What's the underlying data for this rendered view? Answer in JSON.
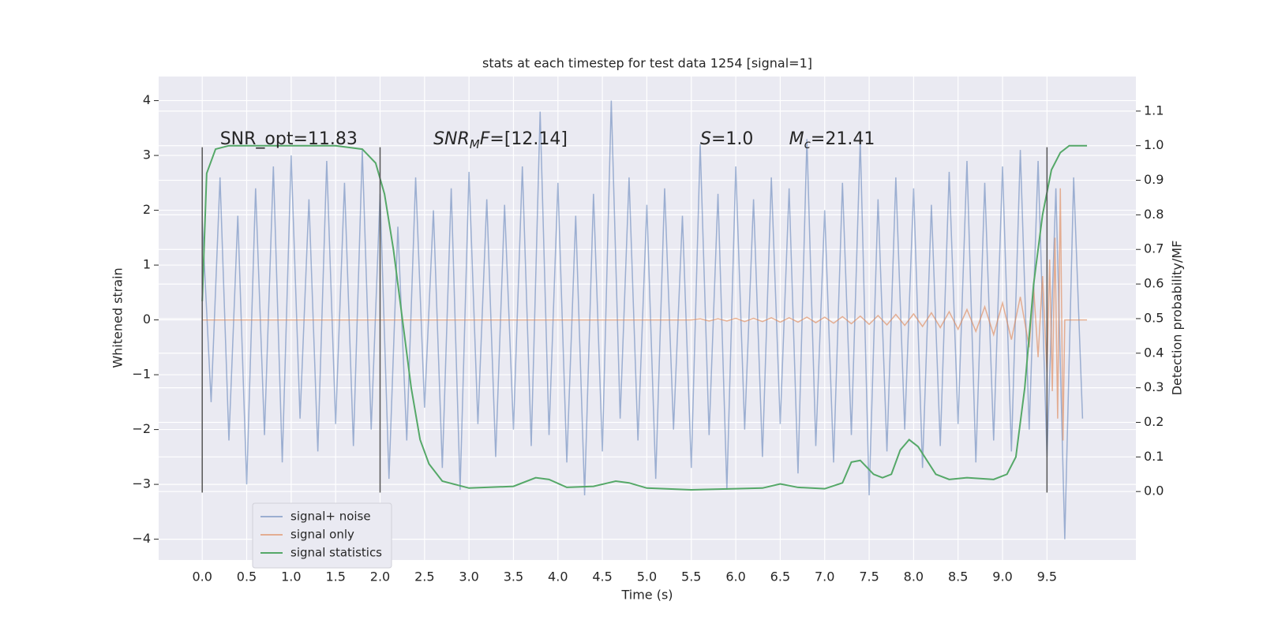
{
  "chart_data": {
    "type": "line",
    "title": "stats at each timestep for test data 1254 [signal=1]",
    "xlabel": "Time (s)",
    "ylabel": "Whitened strain",
    "y2label": "Detection probability/MF",
    "xlim": [
      -0.49,
      10.5
    ],
    "ylim": [
      -4.38,
      4.44
    ],
    "y2lim": [
      -0.198,
      1.2
    ],
    "xticks": [
      {
        "value": 0,
        "label": "0.0"
      },
      0.5,
      {
        "value": 1,
        "label": "1.0"
      },
      1.5,
      {
        "value": 2,
        "label": "2.0"
      },
      2.5,
      {
        "value": 3,
        "label": "3.0"
      },
      3.5,
      {
        "value": 4,
        "label": "4.0"
      },
      4.5,
      {
        "value": 5,
        "label": "5.0"
      },
      5.5,
      {
        "value": 6,
        "label": "6.0"
      },
      6.5,
      {
        "value": 7,
        "label": "7.0"
      },
      7.5,
      {
        "value": 8,
        "label": "8.0"
      },
      8.5,
      {
        "value": 9,
        "label": "9.0"
      },
      9.5
    ],
    "yticks": [
      {
        "value": -4,
        "label": "−4"
      },
      {
        "value": -3,
        "label": "−3"
      },
      {
        "value": -2,
        "label": "−2"
      },
      {
        "value": -1,
        "label": "−1"
      },
      0,
      1,
      2,
      3,
      4
    ],
    "y2ticks": [
      {
        "value": 0,
        "label": "0.0"
      },
      0.1,
      0.2,
      0.3,
      0.4,
      0.5,
      0.6,
      0.7,
      0.8,
      0.9,
      {
        "value": 1,
        "label": "1.0"
      },
      1.1
    ],
    "grid": true,
    "legend": "lower left",
    "vlines": {
      "x": [
        0,
        2,
        9.5
      ],
      "ymin": -3.15,
      "ymax": 3.15,
      "color": "#555555"
    },
    "annotations": [
      {
        "x": 0.2,
        "y": 3.29,
        "parts": [
          {
            "text": "SNR_opt=11.83"
          }
        ]
      },
      {
        "x": 2.6,
        "y": 3.29,
        "parts": [
          {
            "text": "SNR",
            "style": "italic"
          },
          {
            "text": "M",
            "style": "sub"
          },
          {
            "text": "F",
            "style": "italic"
          },
          {
            "text": "=[12.14]"
          }
        ]
      },
      {
        "x": 5.6,
        "y": 3.29,
        "parts": [
          {
            "text": "S",
            "style": "italic"
          },
          {
            "text": "=1.0"
          }
        ]
      },
      {
        "x": 6.6,
        "y": 3.29,
        "parts": [
          {
            "text": "M",
            "style": "italic"
          },
          {
            "text": "c",
            "style": "sub"
          },
          {
            "text": "=21.41"
          }
        ]
      }
    ],
    "series": [
      {
        "name": "signal+ noise",
        "color": "#4c72b0",
        "opacity": 0.5,
        "axis": "y",
        "x": [
          0,
          0.1,
          0.2,
          0.3,
          0.4,
          0.5,
          0.6,
          0.7,
          0.8,
          0.9,
          1,
          1.1,
          1.2,
          1.3,
          1.4,
          1.5,
          1.6,
          1.7,
          1.8,
          1.9,
          2,
          2.1,
          2.2,
          2.3,
          2.4,
          2.5,
          2.6,
          2.7,
          2.8,
          2.9,
          3,
          3.1,
          3.2,
          3.3,
          3.4,
          3.5,
          3.6,
          3.7,
          3.8,
          3.9,
          4,
          4.1,
          4.2,
          4.3,
          4.4,
          4.5,
          4.6,
          4.7,
          4.8,
          4.9,
          5,
          5.1,
          5.2,
          5.3,
          5.4,
          5.5,
          5.6,
          5.7,
          5.8,
          5.9,
          6,
          6.1,
          6.2,
          6.3,
          6.4,
          6.5,
          6.6,
          6.7,
          6.8,
          6.9,
          7,
          7.1,
          7.2,
          7.3,
          7.4,
          7.5,
          7.6,
          7.7,
          7.8,
          7.9,
          8,
          8.1,
          8.2,
          8.3,
          8.4,
          8.5,
          8.6,
          8.7,
          8.8,
          8.9,
          9,
          9.1,
          9.2,
          9.3,
          9.4,
          9.5,
          9.6,
          9.7,
          9.8,
          9.9
        ],
        "values": [
          1.8,
          -1.5,
          2.6,
          -2.2,
          1.9,
          -3.0,
          2.4,
          -2.1,
          2.8,
          -2.6,
          3.0,
          -1.8,
          2.2,
          -2.4,
          2.9,
          -1.9,
          2.5,
          -2.3,
          3.1,
          -2.0,
          2.3,
          -2.9,
          1.7,
          -2.2,
          2.6,
          -1.6,
          2.0,
          -2.7,
          2.4,
          -3.1,
          2.7,
          -1.9,
          2.2,
          -2.5,
          2.1,
          -2.0,
          2.8,
          -2.3,
          3.8,
          -2.1,
          2.5,
          -2.6,
          1.9,
          -3.2,
          2.3,
          -2.4,
          4.0,
          -1.8,
          2.6,
          -2.2,
          2.1,
          -2.9,
          2.4,
          -2.0,
          1.9,
          -2.7,
          3.2,
          -2.1,
          2.3,
          -3.1,
          2.8,
          -2.0,
          2.2,
          -2.5,
          2.6,
          -1.9,
          2.4,
          -2.8,
          3.3,
          -2.3,
          2.0,
          -2.6,
          2.5,
          -2.1,
          3.3,
          -3.2,
          2.2,
          -2.4,
          2.6,
          -2.0,
          2.4,
          -2.7,
          2.1,
          -2.3,
          2.7,
          -1.9,
          2.9,
          -2.6,
          2.5,
          -2.2,
          2.8,
          -2.4,
          3.1,
          -2.0,
          2.9,
          -2.5,
          2.4,
          -4.0,
          2.6,
          -1.8
        ]
      },
      {
        "name": "signal only",
        "color": "#dd8452",
        "opacity": 0.6,
        "axis": "y",
        "x": [
          0,
          5.5,
          5.6,
          5.7,
          5.8,
          5.9,
          6.0,
          6.1,
          6.2,
          6.3,
          6.4,
          6.5,
          6.6,
          6.7,
          6.8,
          6.9,
          7.0,
          7.1,
          7.2,
          7.3,
          7.4,
          7.5,
          7.6,
          7.7,
          7.8,
          7.9,
          8.0,
          8.1,
          8.2,
          8.3,
          8.4,
          8.5,
          8.6,
          8.7,
          8.8,
          8.9,
          9.0,
          9.1,
          9.2,
          9.3,
          9.35,
          9.4,
          9.45,
          9.5,
          9.53,
          9.56,
          9.59,
          9.62,
          9.65,
          9.68,
          9.7,
          9.75,
          9.95
        ],
        "values": [
          0,
          0,
          0.02,
          -0.02,
          0.02,
          -0.02,
          0.03,
          -0.03,
          0.03,
          -0.03,
          0.04,
          -0.04,
          0.04,
          -0.04,
          0.05,
          -0.05,
          0.05,
          -0.06,
          0.06,
          -0.07,
          0.07,
          -0.08,
          0.08,
          -0.09,
          0.1,
          -0.1,
          0.11,
          -0.12,
          0.13,
          -0.14,
          0.15,
          -0.17,
          0.19,
          -0.21,
          0.24,
          -0.27,
          0.31,
          -0.36,
          0.42,
          -0.5,
          0.58,
          -0.68,
          0.8,
          -0.95,
          1.1,
          -1.3,
          1.5,
          -1.8,
          2.4,
          -2.2,
          0,
          0,
          0
        ]
      },
      {
        "name": "signal statistics",
        "color": "#55a868",
        "opacity": 1,
        "axis": "y2",
        "x": [
          0,
          0.05,
          0.15,
          0.3,
          0.8,
          1.5,
          1.8,
          1.95,
          2.05,
          2.15,
          2.25,
          2.35,
          2.45,
          2.55,
          2.7,
          3.0,
          3.5,
          3.75,
          3.9,
          4.1,
          4.4,
          4.65,
          4.8,
          5.0,
          5.5,
          6.0,
          6.3,
          6.5,
          6.7,
          7.0,
          7.2,
          7.3,
          7.4,
          7.55,
          7.65,
          7.75,
          7.85,
          7.95,
          8.05,
          8.25,
          8.4,
          8.6,
          8.9,
          9.05,
          9.15,
          9.25,
          9.35,
          9.45,
          9.55,
          9.65,
          9.75,
          9.95
        ],
        "values": [
          0.55,
          0.92,
          0.99,
          1.0,
          1.0,
          1.0,
          0.99,
          0.95,
          0.86,
          0.7,
          0.5,
          0.3,
          0.15,
          0.08,
          0.03,
          0.01,
          0.015,
          0.04,
          0.035,
          0.012,
          0.015,
          0.03,
          0.025,
          0.01,
          0.005,
          0.008,
          0.01,
          0.022,
          0.012,
          0.008,
          0.025,
          0.085,
          0.09,
          0.05,
          0.04,
          0.05,
          0.12,
          0.15,
          0.13,
          0.05,
          0.035,
          0.04,
          0.035,
          0.05,
          0.1,
          0.3,
          0.6,
          0.8,
          0.93,
          0.98,
          1.0,
          1.0
        ]
      }
    ]
  }
}
